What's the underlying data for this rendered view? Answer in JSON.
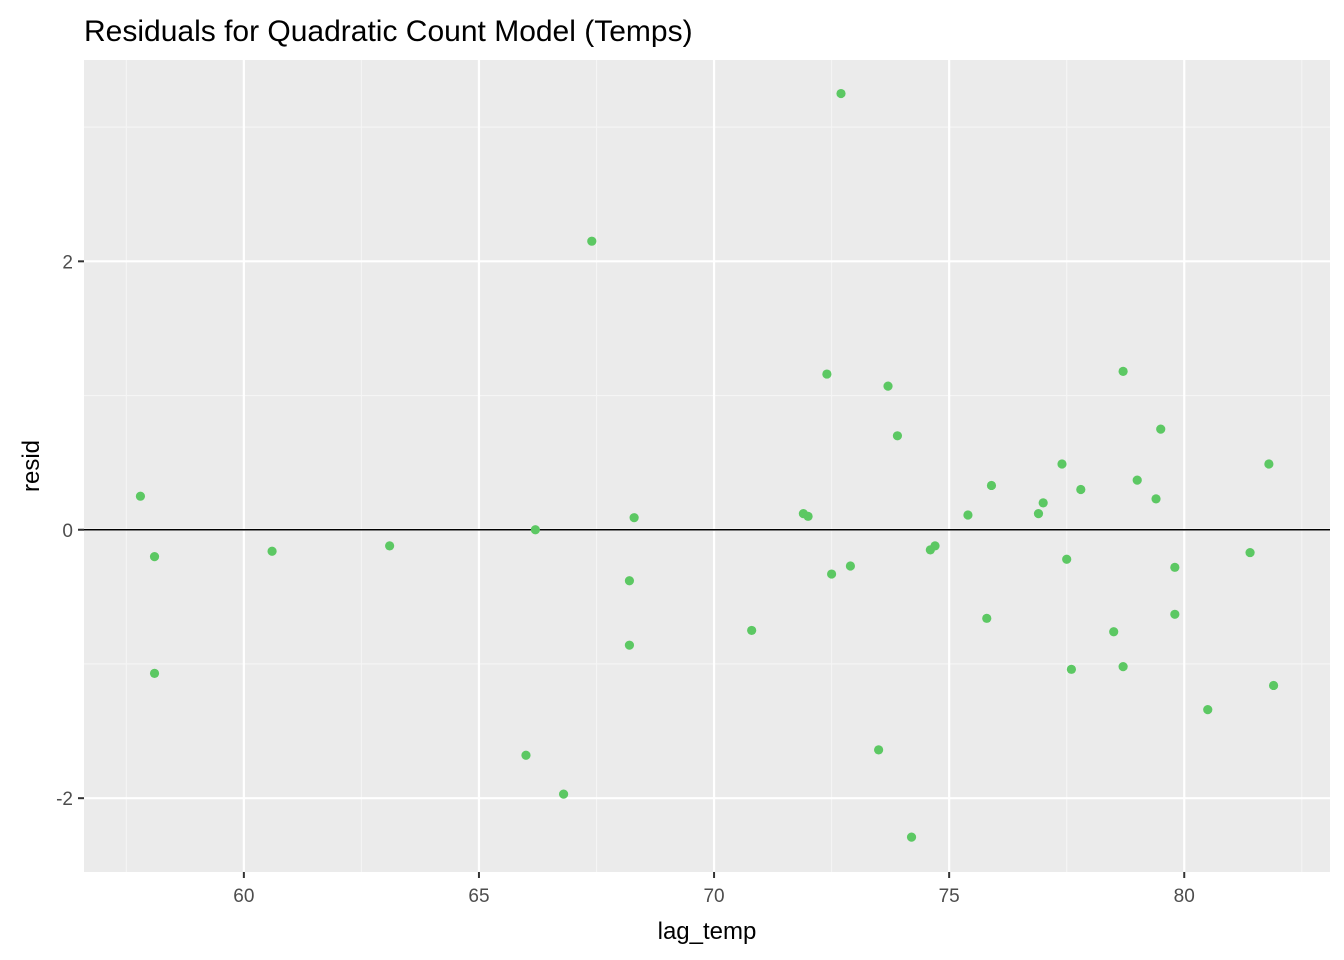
{
  "colors": {
    "panel_background": "#EBEBEB",
    "grid_major": "#FFFFFF",
    "grid_minor": "#F5F5F5",
    "points": "#5CC863",
    "reference_line": "#000000",
    "tick_text": "#4D4D4D"
  },
  "chart_data": {
    "type": "scatter",
    "title": "Residuals for Quadratic Count Model (Temps)",
    "xlabel": "lag_temp",
    "ylabel": "resid",
    "xlim": [
      56.6,
      83.1
    ],
    "ylim": [
      -2.55,
      3.5
    ],
    "xticks": [
      60,
      65,
      70,
      75,
      80
    ],
    "xtick_labels": [
      "60",
      "65",
      "70",
      "75",
      "80"
    ],
    "yticks": [
      -2,
      0,
      2
    ],
    "ytick_labels": [
      "-2",
      "0",
      "2"
    ],
    "grid": true,
    "hline": 0,
    "legend": "none",
    "x": [
      57.8,
      58.1,
      58.1,
      60.6,
      63.1,
      66.0,
      66.2,
      66.8,
      67.4,
      68.2,
      68.2,
      68.3,
      70.8,
      71.9,
      72.0,
      72.4,
      72.5,
      72.7,
      72.9,
      73.5,
      73.7,
      73.9,
      74.2,
      74.6,
      74.7,
      75.4,
      75.8,
      75.9,
      76.9,
      77.0,
      77.4,
      77.5,
      77.6,
      77.8,
      78.5,
      78.7,
      78.7,
      79.0,
      79.4,
      79.5,
      79.8,
      79.8,
      80.5,
      81.4,
      81.8,
      81.9
    ],
    "y": [
      0.25,
      -0.2,
      -1.07,
      -0.16,
      -0.12,
      -1.68,
      0.0,
      -1.97,
      2.15,
      -0.38,
      -0.86,
      0.09,
      -0.75,
      0.12,
      0.1,
      1.16,
      -0.33,
      3.25,
      -0.27,
      -1.64,
      1.07,
      0.7,
      -2.29,
      -0.15,
      -0.12,
      0.11,
      -0.66,
      0.33,
      0.12,
      0.2,
      0.49,
      -0.22,
      -1.04,
      0.3,
      -0.76,
      1.18,
      -1.02,
      0.37,
      0.23,
      0.75,
      -0.28,
      -0.63,
      -1.34,
      -0.17,
      0.49,
      -1.16
    ]
  }
}
